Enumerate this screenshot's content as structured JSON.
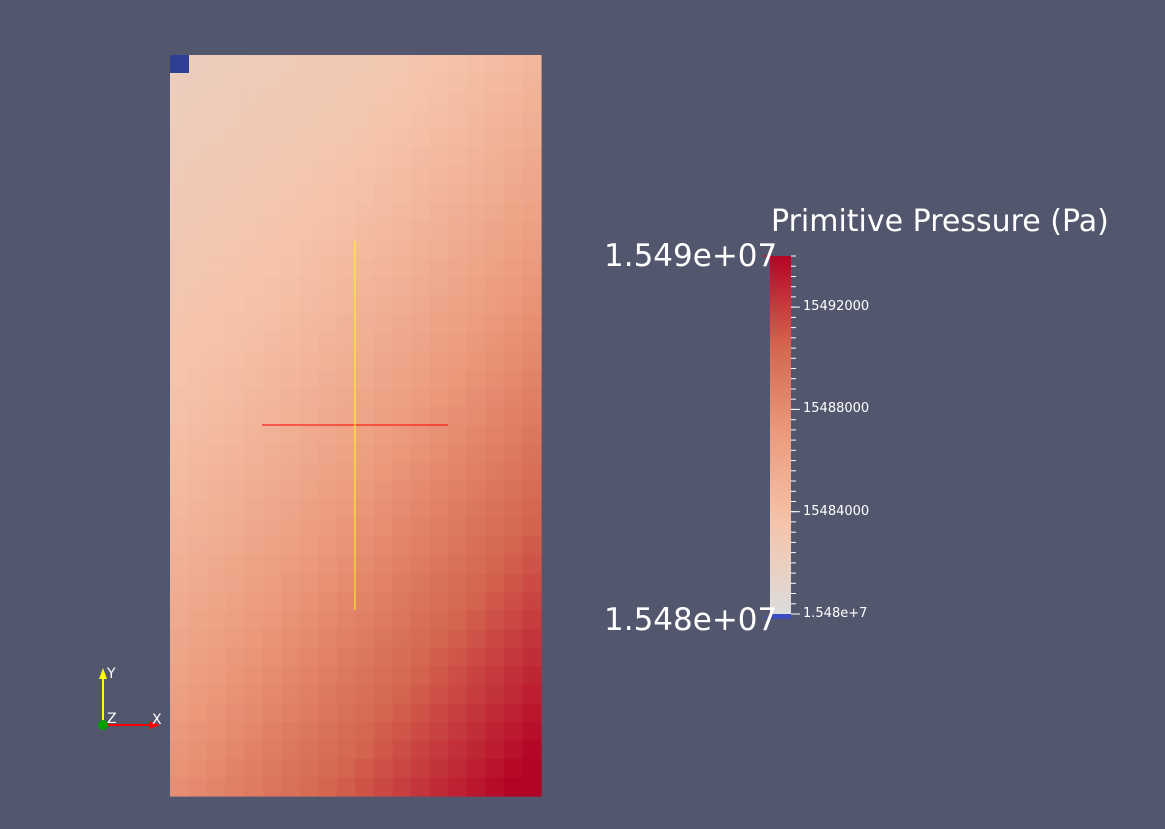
{
  "view": {
    "background": "#52576e",
    "field": {
      "grid_columns": 20,
      "grid_rows": 40,
      "min_value": 15480000,
      "max_value": 15494000,
      "corner_cell_color": "#2e3f94",
      "crosshair_horizontal_color": "#ff0000",
      "crosshair_vertical_color": "#ffff00"
    },
    "orientation_axes": {
      "y_label": "Y",
      "z_label": "Z",
      "x_label": "X",
      "y_color": "#ffff00",
      "x_color": "#ff0000",
      "z_color": "#00a000"
    }
  },
  "colorbar": {
    "title": "Primitive Pressure (Pa)",
    "range_max_label": "1.549e+07",
    "range_min_label": "1.548e+07",
    "range_min": 15480000,
    "range_max": 15494000,
    "ticks": [
      {
        "value": 15492000,
        "label": "15492000"
      },
      {
        "value": 15488000,
        "label": "15488000"
      },
      {
        "value": 15484000,
        "label": "15484000"
      },
      {
        "value": 15480000,
        "label": "1.548e+7"
      }
    ],
    "colormap": [
      "#dcdcdc",
      "#f5c4aa",
      "#ec9b7e",
      "#d4654f",
      "#b40426"
    ],
    "below_range_color": "#3b4cc0"
  }
}
